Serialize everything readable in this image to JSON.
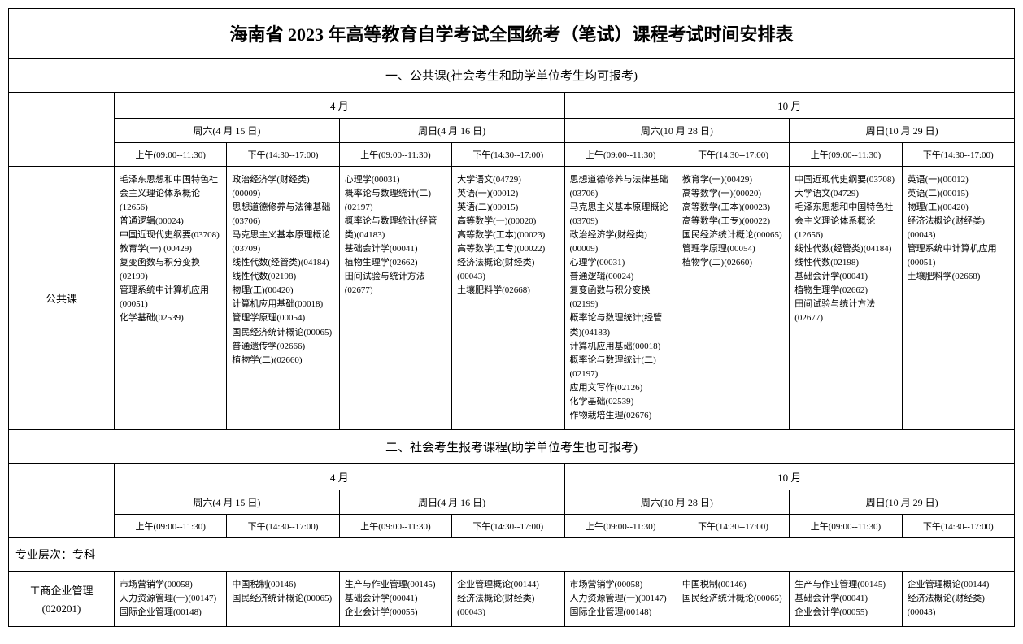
{
  "title": "海南省 2023 年高等教育自学考试全国统考（笔试）课程考试时间安排表",
  "section1": "一、公共课(社会考生和助学单位考生均可报考)",
  "section2": "二、社会考生报考课程(助学单位考生也可报考)",
  "months": {
    "apr": "4 月",
    "oct": "10 月"
  },
  "days": {
    "apr_sat": "周六(4 月 15 日)",
    "apr_sun": "周日(4 月 16 日)",
    "oct_sat": "周六(10 月 28 日)",
    "oct_sun": "周日(10 月 29 日)"
  },
  "slots": {
    "am": "上午(09:00--11:30)",
    "pm": "下午(14:30--17:00)"
  },
  "public_label": "公共课",
  "degree_header": "专业层次：专科",
  "major1_label_line1": "工商企业管理",
  "major1_label_line2": "(020201)",
  "public": {
    "c1": "毛泽东思想和中国特色社会主义理论体系概论(12656)\n普通逻辑(00024)\n中国近现代史纲要(03708)\n教育学(一) (00429)\n复变函数与积分变换(02199)\n管理系统中计算机应用(00051)\n化学基础(02539)",
    "c2": "政治经济学(财经类)(00009)\n思想道德修养与法律基础(03706)\n马克思主义基本原理概论(03709)\n线性代数(经管类)(04184)\n线性代数(02198)\n物理(工)(00420)\n计算机应用基础(00018)\n管理学原理(00054)\n国民经济统计概论(00065)\n普通遗传学(02666)\n植物学(二)(02660)",
    "c3": "心理学(00031)\n概率论与数理统计(二)(02197)\n概率论与数理统计(经管类)(04183)\n基础会计学(00041)\n植物生理学(02662)\n田间试验与统计方法(02677)",
    "c4": "大学语文(04729)\n英语(一)(00012)\n英语(二)(00015)\n高等数学(一)(00020)\n高等数学(工本)(00023)\n高等数学(工专)(00022)\n经济法概论(财经类)(00043)\n土壤肥料学(02668)",
    "c5": "思想道德修养与法律基础(03706)\n马克思主义基本原理概论(03709)\n政治经济学(财经类)(00009)\n心理学(00031)\n普通逻辑(00024)\n复变函数与积分变换(02199)\n概率论与数理统计(经管类)(04183)\n计算机应用基础(00018)\n概率论与数理统计(二)(02197)\n应用文写作(02126)\n化学基础(02539)\n作物栽培生理(02676)",
    "c6": "教育学(一)(00429)\n高等数学(一)(00020)\n高等数学(工本)(00023)\n高等数学(工专)(00022)\n国民经济统计概论(00065)\n管理学原理(00054)\n植物学(二)(02660)",
    "c7": "中国近现代史纲要(03708)\n大学语文(04729)\n毛泽东思想和中国特色社会主义理论体系概论(12656)\n线性代数(经管类)(04184)\n线性代数(02198)\n基础会计学(00041)\n植物生理学(02662)\n田间试验与统计方法(02677)",
    "c8": "英语(一)(00012)\n英语(二)(00015)\n物理(工)(00420)\n经济法概论(财经类)(00043)\n管理系统中计算机应用(00051)\n土壤肥料学(02668)"
  },
  "major1": {
    "c1": "市场营销学(00058)\n人力资源管理(一)(00147)\n国际企业管理(00148)",
    "c2": "中国税制(00146)\n国民经济统计概论(00065)",
    "c3": "生产与作业管理(00145)\n基础会计学(00041)\n企业会计学(00055)",
    "c4": "企业管理概论(00144)\n经济法概论(财经类)(00043)",
    "c5": "市场营销学(00058)\n人力资源管理(一)(00147)\n国际企业管理(00148)",
    "c6": "中国税制(00146)\n国民经济统计概论(00065)",
    "c7": "生产与作业管理(00145)\n基础会计学(00041)\n企业会计学(00055)",
    "c8": "企业管理概论(00144)\n经济法概论(财经类)(00043)"
  }
}
